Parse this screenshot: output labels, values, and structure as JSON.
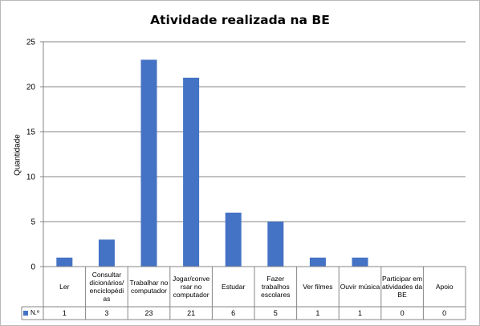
{
  "chart_data": {
    "type": "bar",
    "title": "Atividade realizada na BE",
    "ylabel": "Quantidade",
    "xlabel": "",
    "ylim": [
      0,
      25
    ],
    "yticks": [
      0,
      5,
      10,
      15,
      20,
      25
    ],
    "grid": true,
    "legend_placement": "data-table-left",
    "categories": [
      "Ler",
      "Consultar dicionários/ enciclopédi as",
      "Trabalhar no computador",
      "Jogar/conve rsar no computador",
      "Estudar",
      "Fazer trabalhos escolares",
      "Ver filmes",
      "Ouvir música",
      "Participar em atividades da BE",
      "Apoio"
    ],
    "series": [
      {
        "name": "N.º",
        "color": "#4472c4",
        "values": [
          1,
          3,
          23,
          21,
          6,
          5,
          1,
          1,
          0,
          0
        ]
      }
    ]
  }
}
